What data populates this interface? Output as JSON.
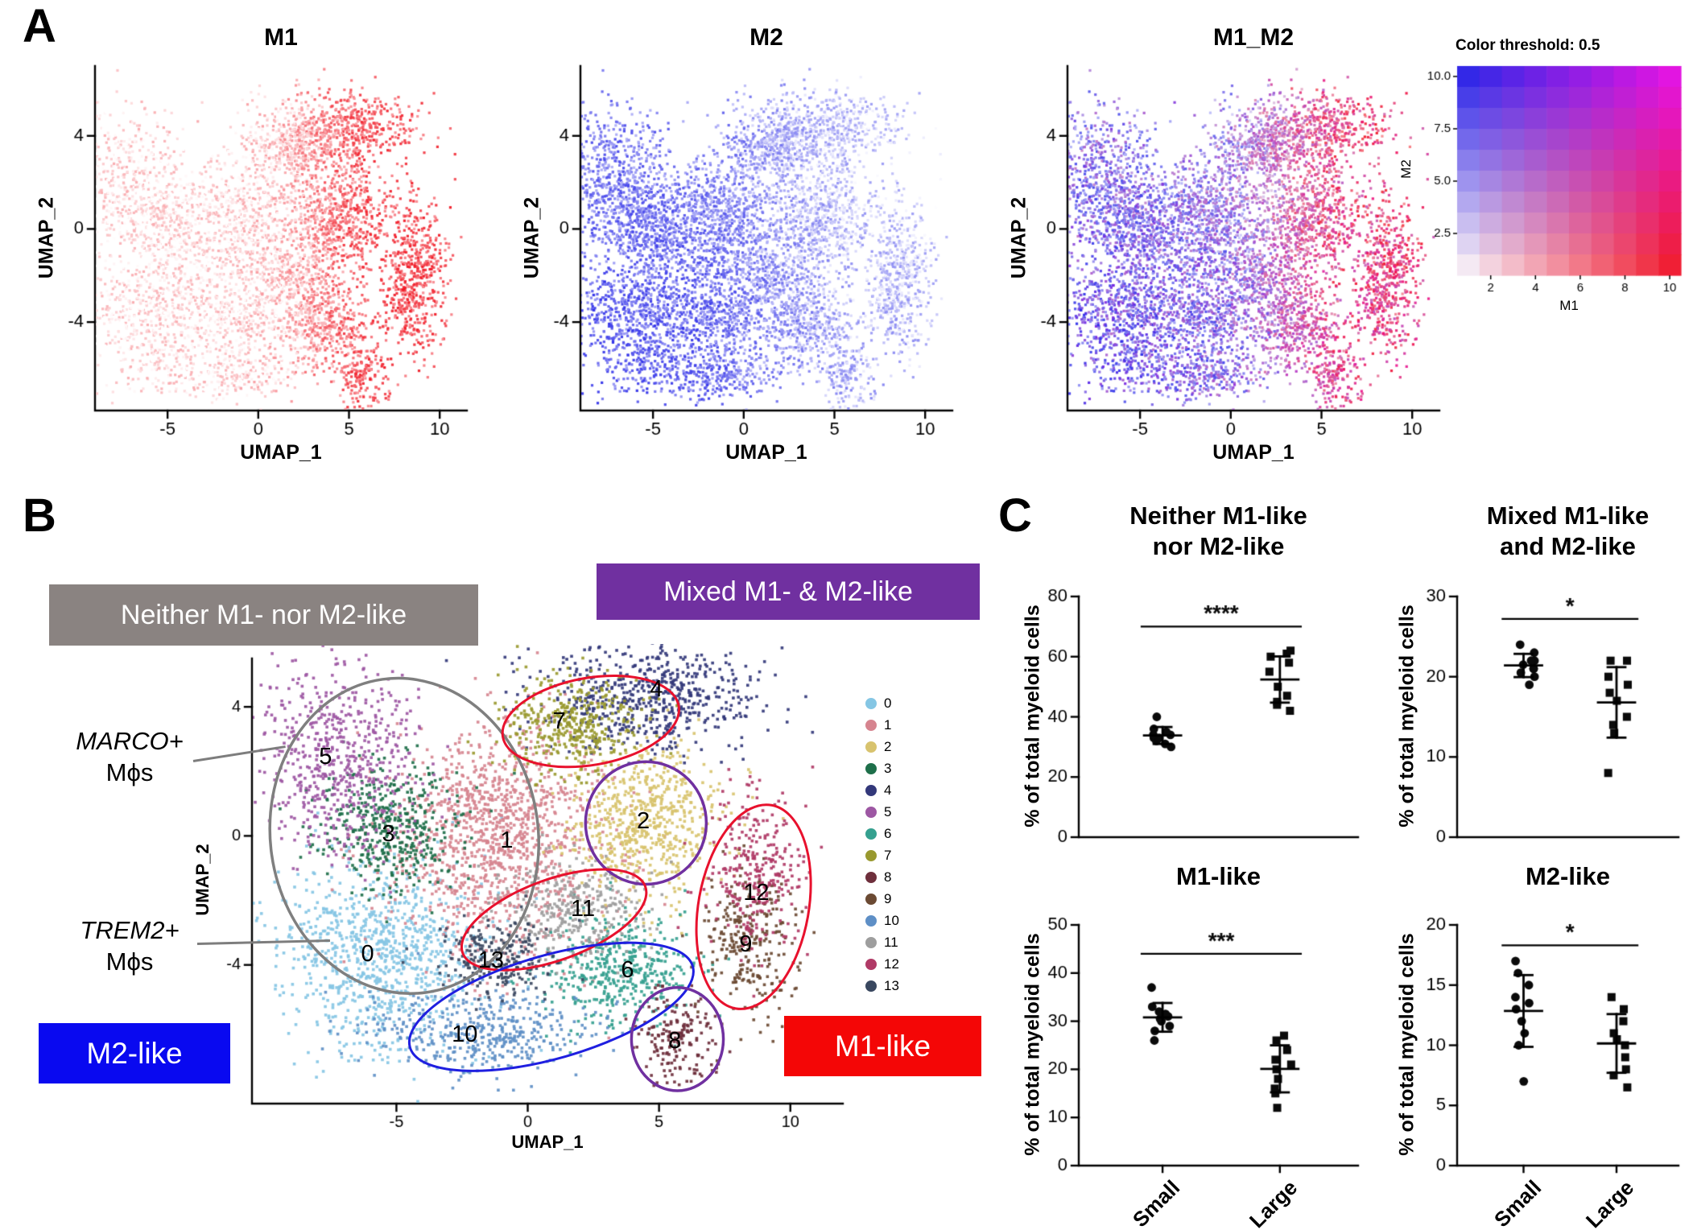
{
  "figure": {
    "panel_labels": {
      "a": "A",
      "b": "B",
      "c": "C"
    }
  },
  "panels": {
    "B": {
      "boxes": {
        "neither": "Neither M1- nor M2-like",
        "mixed": "Mixed M1- & M2-like",
        "m2": "M2-like",
        "m1": "M1-like"
      },
      "callouts": {
        "marco_line1": "MARCO+",
        "marco_line2": "Mϕs",
        "trem2_line1": "TREM2+",
        "trem2_line2": "Mϕs"
      }
    }
  },
  "chart_data": [
    {
      "id": "A_M1",
      "type": "scatter",
      "title": "M1",
      "xlabel": "UMAP_1",
      "ylabel": "UMAP_2",
      "xlim": [
        -9,
        11.5
      ],
      "ylim": [
        -7.8,
        7.0
      ],
      "xticks": [
        -5,
        0,
        5,
        10
      ],
      "yticks": [
        -4,
        0,
        4
      ],
      "color_mode": "m1",
      "seed": 1,
      "description": "UMAP of myeloid cells colored by M1 signature score, white (low) to red (high); highest on right side clusters"
    },
    {
      "id": "A_M2",
      "type": "scatter",
      "title": "M2",
      "xlabel": "UMAP_1",
      "ylabel": "UMAP_2",
      "xlim": [
        -9,
        11.5
      ],
      "ylim": [
        -7.8,
        7.0
      ],
      "xticks": [
        -5,
        0,
        5,
        10
      ],
      "yticks": [
        -4,
        0,
        4
      ],
      "color_mode": "m2",
      "seed": 2,
      "description": "UMAP colored by M2 signature score, white (low) to blue (high); broadly expressed, deepest bottom-left"
    },
    {
      "id": "A_M1M2",
      "type": "scatter",
      "title": "M1_M2",
      "xlabel": "UMAP_1",
      "ylabel": "UMAP_2",
      "xlim": [
        -9,
        11.5
      ],
      "ylim": [
        -7.8,
        7.0
      ],
      "xticks": [
        -5,
        0,
        5,
        10
      ],
      "yticks": [
        -4,
        0,
        4
      ],
      "color_mode": "m1m2",
      "seed": 3,
      "description": "UMAP blended M1 (red) / M2 (blue) / both (magenta) scores"
    },
    {
      "id": "A_colorkey",
      "type": "heatmap",
      "title": "Color threshold: 0.5",
      "threshold": 0.5,
      "xlabel": "M1",
      "ylabel": "M2",
      "xticks": [
        2,
        4,
        6,
        8,
        10
      ],
      "yticks": [
        2.5,
        5,
        7.5,
        10
      ],
      "ytick_labels": [
        "2.5",
        "5.0",
        "7.5",
        "10.0"
      ],
      "grid": [
        10,
        10
      ],
      "colors": {
        "low": "#FFFFFF",
        "m1_high": "#F01420",
        "m2_high": "#1E1EE6",
        "both_high": "#EB14EB"
      }
    },
    {
      "id": "B_umap",
      "type": "scatter",
      "xlabel": "UMAP_1",
      "ylabel": "UMAP_2",
      "xlim": [
        -10.5,
        12
      ],
      "ylim": [
        -8.3,
        5.5
      ],
      "xticks": [
        -5,
        0,
        5,
        10
      ],
      "yticks": [
        -4,
        0,
        4
      ],
      "color_mode": "cluster",
      "clusters": [
        {
          "id": "0",
          "color": "#85C6E4",
          "center": [
            -5.7,
            -3.7
          ],
          "sd": [
            2.0,
            1.5
          ],
          "n": 950,
          "label_pos": [
            -6.1,
            -3.7
          ]
        },
        {
          "id": "1",
          "color": "#D6848F",
          "center": [
            -1.1,
            -0.1
          ],
          "sd": [
            2.1,
            1.7
          ],
          "n": 1200,
          "label_pos": [
            -0.8,
            -0.2
          ]
        },
        {
          "id": "2",
          "color": "#D8C36E",
          "center": [
            4.5,
            0.5
          ],
          "sd": [
            1.5,
            1.2
          ],
          "n": 650,
          "label_pos": [
            4.4,
            0.4
          ]
        },
        {
          "id": "3",
          "color": "#1E6F4A",
          "center": [
            -5.1,
            0.2
          ],
          "sd": [
            1.3,
            1.0
          ],
          "n": 430,
          "label_pos": [
            -5.3,
            0.0
          ]
        },
        {
          "id": "4",
          "color": "#33387A",
          "center": [
            4.7,
            4.3
          ],
          "sd": [
            2.1,
            0.8
          ],
          "n": 600,
          "label_pos": [
            4.9,
            4.5
          ]
        },
        {
          "id": "5",
          "color": "#9D57A3",
          "center": [
            -7.2,
            2.3
          ],
          "sd": [
            1.5,
            1.4
          ],
          "n": 600,
          "label_pos": [
            -7.7,
            2.4
          ]
        },
        {
          "id": "6",
          "color": "#35A08F",
          "center": [
            3.4,
            -4.2
          ],
          "sd": [
            1.4,
            0.9
          ],
          "n": 430,
          "label_pos": [
            3.8,
            -4.2
          ]
        },
        {
          "id": "7",
          "color": "#99992F",
          "center": [
            1.7,
            3.5
          ],
          "sd": [
            1.3,
            0.8
          ],
          "n": 400,
          "label_pos": [
            1.2,
            3.5
          ]
        },
        {
          "id": "8",
          "color": "#6E2F3C",
          "center": [
            5.7,
            -6.3
          ],
          "sd": [
            0.75,
            0.65
          ],
          "n": 180,
          "label_pos": [
            5.6,
            -6.4
          ]
        },
        {
          "id": "9",
          "color": "#6B4A33",
          "center": [
            8.4,
            -3.3
          ],
          "sd": [
            0.9,
            1.1
          ],
          "n": 280,
          "label_pos": [
            8.3,
            -3.4
          ]
        },
        {
          "id": "10",
          "color": "#5E8FC6",
          "center": [
            -1.7,
            -6.0
          ],
          "sd": [
            2.1,
            0.7
          ],
          "n": 420,
          "label_pos": [
            -2.4,
            -6.2
          ]
        },
        {
          "id": "11",
          "color": "#9E9E9E",
          "center": [
            1.9,
            -2.3
          ],
          "sd": [
            1.4,
            0.75
          ],
          "n": 320,
          "label_pos": [
            2.1,
            -2.3
          ]
        },
        {
          "id": "12",
          "color": "#B03A66",
          "center": [
            8.8,
            -1.3
          ],
          "sd": [
            0.9,
            1.3
          ],
          "n": 300,
          "label_pos": [
            8.7,
            -1.8
          ]
        },
        {
          "id": "13",
          "color": "#39475F",
          "center": [
            -1.1,
            -3.8
          ],
          "sd": [
            1.1,
            0.6
          ],
          "n": 230,
          "label_pos": [
            -1.4,
            -3.9
          ]
        }
      ],
      "annotations": {
        "ellipses": [
          {
            "group": "neither-m1-nor-m2",
            "color": "#7F7F7F",
            "cx": -4.7,
            "cy": 0.0,
            "rx": 5.1,
            "ry": 4.9,
            "rot": -8,
            "lw": 3.5
          },
          {
            "group": "m1-like-top",
            "color": "#E8112D",
            "cx": 2.4,
            "cy": 3.55,
            "rx": 3.4,
            "ry": 1.35,
            "rot": -10,
            "lw": 3
          },
          {
            "group": "mixed-cluster-2",
            "color": "#7030A0",
            "cx": 4.5,
            "cy": 0.4,
            "rx": 2.3,
            "ry": 1.9,
            "rot": 0,
            "lw": 3.5
          },
          {
            "group": "m1-like-mid",
            "color": "#E8112D",
            "cx": 1.0,
            "cy": -2.6,
            "rx": 3.7,
            "ry": 1.25,
            "rot": -20,
            "lw": 3
          },
          {
            "group": "m2-like-bottom",
            "color": "#1F1FE0",
            "cx": 0.9,
            "cy": -5.3,
            "rx": 5.6,
            "ry": 1.6,
            "rot": -16,
            "lw": 3
          },
          {
            "group": "m1-like-right",
            "color": "#E8112D",
            "cx": 8.6,
            "cy": -2.2,
            "rx": 2.1,
            "ry": 3.2,
            "rot": 10,
            "lw": 3
          },
          {
            "group": "mixed-cluster-8",
            "color": "#7030A0",
            "cx": 5.7,
            "cy": -6.3,
            "rx": 1.75,
            "ry": 1.6,
            "rot": 0,
            "lw": 3.5
          }
        ]
      }
    },
    {
      "id": "C_neither",
      "type": "dotplot",
      "title_lines": [
        "Neither M1-like",
        "nor M2-like"
      ],
      "ylabel": "% of total myeloid cells",
      "ylim": [
        0,
        80
      ],
      "yticks": [
        0,
        20,
        40,
        60,
        80
      ],
      "significance": "****",
      "sig_y": 70,
      "categories": [
        "Small",
        "Large"
      ],
      "series": [
        {
          "name": "Small",
          "marker": "circle",
          "values": [
            30,
            31,
            32,
            33,
            33,
            34,
            34,
            35,
            36,
            40
          ]
        },
        {
          "name": "Large",
          "marker": "square",
          "values": [
            42,
            44,
            45,
            47,
            50,
            55,
            58,
            60,
            61,
            62
          ]
        }
      ]
    },
    {
      "id": "C_mixed",
      "type": "dotplot",
      "title_lines": [
        "Mixed M1-like",
        "and M2-like"
      ],
      "ylabel": "% of total myeloid cells",
      "ylim": [
        0,
        30
      ],
      "yticks": [
        0,
        10,
        20,
        30
      ],
      "significance": "*",
      "sig_y": 27.2,
      "categories": [
        "Small",
        "Large"
      ],
      "series": [
        {
          "name": "Small",
          "marker": "circle",
          "values": [
            19,
            20,
            20.5,
            21,
            21,
            21.5,
            22,
            22,
            23,
            24
          ]
        },
        {
          "name": "Large",
          "marker": "square",
          "values": [
            8,
            13,
            14,
            15,
            17,
            18,
            19,
            20,
            22,
            22
          ]
        }
      ]
    },
    {
      "id": "C_m1like",
      "type": "dotplot",
      "title_lines": [
        "M1-like"
      ],
      "ylabel": "% of total myeloid cells",
      "ylim": [
        0,
        50
      ],
      "yticks": [
        0,
        10,
        20,
        30,
        40,
        50
      ],
      "significance": "***",
      "sig_y": 44,
      "categories": [
        "Small",
        "Large"
      ],
      "series": [
        {
          "name": "Small",
          "marker": "circle",
          "values": [
            26,
            28,
            29,
            30,
            30.5,
            31,
            31.5,
            32,
            33,
            37
          ]
        },
        {
          "name": "Large",
          "marker": "square",
          "values": [
            12,
            15,
            16,
            18,
            20,
            21,
            22,
            24,
            26,
            27
          ]
        }
      ]
    },
    {
      "id": "C_m2like",
      "type": "dotplot",
      "title_lines": [
        "M2-like"
      ],
      "ylabel": "% of total myeloid cells",
      "ylim": [
        0,
        20
      ],
      "yticks": [
        0,
        5,
        10,
        15,
        20
      ],
      "significance": "*",
      "sig_y": 18.3,
      "categories": [
        "Small",
        "Large"
      ],
      "series": [
        {
          "name": "Small",
          "marker": "circle",
          "values": [
            7,
            10,
            11,
            12,
            13,
            13.5,
            14,
            15,
            16,
            17
          ]
        },
        {
          "name": "Large",
          "marker": "square",
          "values": [
            6.5,
            7.5,
            8,
            9,
            10,
            10.5,
            11,
            12,
            13,
            14
          ]
        }
      ]
    }
  ]
}
